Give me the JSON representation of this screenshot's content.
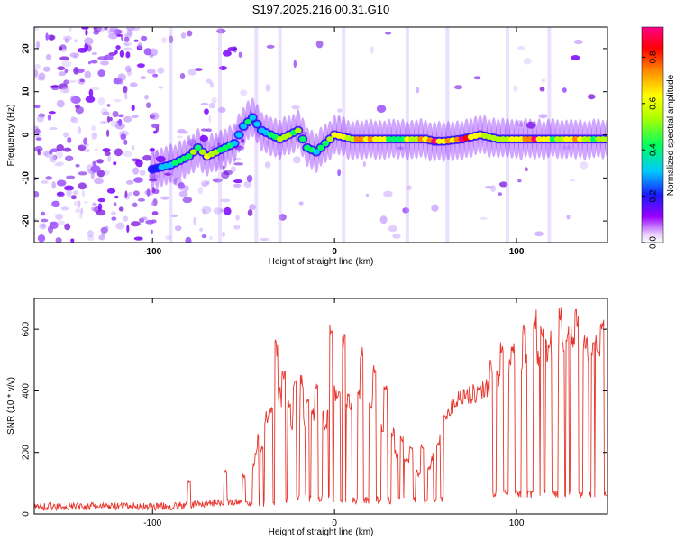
{
  "title": "S197.2025.216.00.31.G10",
  "colors": {
    "snr_line": "#e8332a",
    "low": "#7a00ff",
    "mid": "#00c8ff",
    "high": "#ff0000"
  },
  "chart_data": [
    {
      "type": "heatmap",
      "xlabel": "Height of straight line (km)",
      "ylabel": "Frequency (Hz)",
      "xlim": [
        -165,
        150
      ],
      "ylim": [
        -25,
        25
      ],
      "xticks": [
        {
          "value": -100,
          "label": "-100"
        },
        {
          "value": 0,
          "label": "0"
        },
        {
          "value": 100,
          "label": "100"
        }
      ],
      "yticks": [
        {
          "value": -20,
          "label": "-20"
        },
        {
          "value": -10,
          "label": "-10"
        },
        {
          "value": 0,
          "label": "0"
        },
        {
          "value": 10,
          "label": "10"
        },
        {
          "value": 20,
          "label": "20"
        }
      ],
      "colorbar": {
        "label": "Normalized spectral amplitude",
        "range": [
          0,
          0.93
        ],
        "ticks": [
          {
            "value": 0.0,
            "label": "0.0"
          },
          {
            "value": 0.2,
            "label": "0.2"
          },
          {
            "value": 0.4,
            "label": "0.4"
          },
          {
            "value": 0.6,
            "label": "0.6"
          },
          {
            "value": 0.8,
            "label": "0.8"
          }
        ]
      },
      "ridge": {
        "x": [
          -100,
          -90,
          -80,
          -75,
          -70,
          -60,
          -55,
          -50,
          -45,
          -40,
          -35,
          -30,
          -25,
          -20,
          -15,
          -10,
          0,
          10,
          20,
          30,
          40,
          50,
          55,
          60,
          70,
          80,
          90,
          100,
          110,
          120,
          130,
          140,
          150
        ],
        "freq": [
          -8,
          -7,
          -5,
          -3,
          -5,
          -3,
          -2,
          2,
          4,
          1,
          0,
          -1,
          0,
          1,
          -3,
          -4,
          0,
          -1,
          -1,
          -1,
          -1,
          -1,
          -1.5,
          -1.5,
          -1,
          0,
          -1,
          -1,
          -1,
          -1,
          -1,
          -1,
          -1
        ],
        "amplitude": [
          0.3,
          0.4,
          0.55,
          0.5,
          0.6,
          0.5,
          0.45,
          0.4,
          0.35,
          0.4,
          0.5,
          0.55,
          0.65,
          0.55,
          0.45,
          0.4,
          0.6,
          0.7,
          0.85,
          0.6,
          0.6,
          0.7,
          0.9,
          0.7,
          0.93,
          0.7,
          0.6,
          0.75,
          0.85,
          0.6,
          0.7,
          0.6,
          0.5
        ]
      }
    },
    {
      "type": "line",
      "xlabel": "Height of straight line (km)",
      "ylabel": "SNR (10 * v/v)",
      "xlim": [
        -165,
        150
      ],
      "ylim": [
        0,
        700
      ],
      "xticks": [
        {
          "value": -100,
          "label": "-100"
        },
        {
          "value": 0,
          "label": "0"
        },
        {
          "value": 100,
          "label": "100"
        }
      ],
      "yticks": [
        {
          "value": 0,
          "label": "0"
        },
        {
          "value": 200,
          "label": "200"
        },
        {
          "value": 400,
          "label": "400"
        },
        {
          "value": 600,
          "label": "600"
        }
      ],
      "baseline": {
        "x": [
          -165,
          -90,
          -80,
          -70,
          -60,
          -50,
          -40,
          -30,
          -20,
          -10,
          0,
          10,
          20,
          30,
          40,
          50,
          60,
          80,
          100,
          120,
          150
        ],
        "y": [
          20,
          20,
          25,
          30,
          35,
          30,
          25,
          40,
          50,
          45,
          45,
          40,
          40,
          40,
          40,
          40,
          40,
          60,
          60,
          60,
          60
        ]
      },
      "envelope": {
        "x": [
          -165,
          -90,
          -80,
          -70,
          -60,
          -50,
          -45,
          -40,
          -35,
          -30,
          -25,
          -20,
          -15,
          -10,
          -5,
          0,
          5,
          10,
          15,
          20,
          25,
          30,
          35,
          40,
          45,
          50,
          55,
          60,
          65,
          70,
          75,
          80,
          85,
          90,
          95,
          100,
          105,
          110,
          115,
          120,
          125,
          130,
          135,
          140,
          145,
          150
        ],
        "y": [
          25,
          30,
          80,
          110,
          140,
          120,
          150,
          350,
          320,
          420,
          300,
          350,
          290,
          380,
          330,
          430,
          390,
          400,
          430,
          400,
          300,
          250,
          200,
          180,
          150,
          120,
          220,
          340,
          380,
          420,
          420,
          430,
          450,
          480,
          500,
          520,
          540,
          560,
          570,
          580,
          590,
          620,
          600,
          580,
          590,
          600
        ]
      },
      "spikes": {
        "x": [
          -80,
          -60,
          -50,
          -40,
          -35,
          -32,
          -28,
          -25,
          -22,
          -18,
          -15,
          -10,
          -5,
          -2,
          5,
          15,
          22,
          28,
          32,
          37,
          42,
          48,
          52,
          57,
          86,
          92,
          98,
          104,
          110,
          114,
          118,
          124,
          128,
          133,
          138,
          142,
          147
        ],
        "y": [
          110,
          145,
          130,
          220,
          350,
          565,
          480,
          380,
          440,
          455,
          390,
          430,
          300,
          630,
          590,
          550,
          495,
          420,
          280,
          260,
          220,
          230,
          160,
          240,
          510,
          575,
          560,
          625,
          665,
          620,
          600,
          690,
          610,
          670,
          580,
          570,
          640
        ]
      }
    }
  ]
}
